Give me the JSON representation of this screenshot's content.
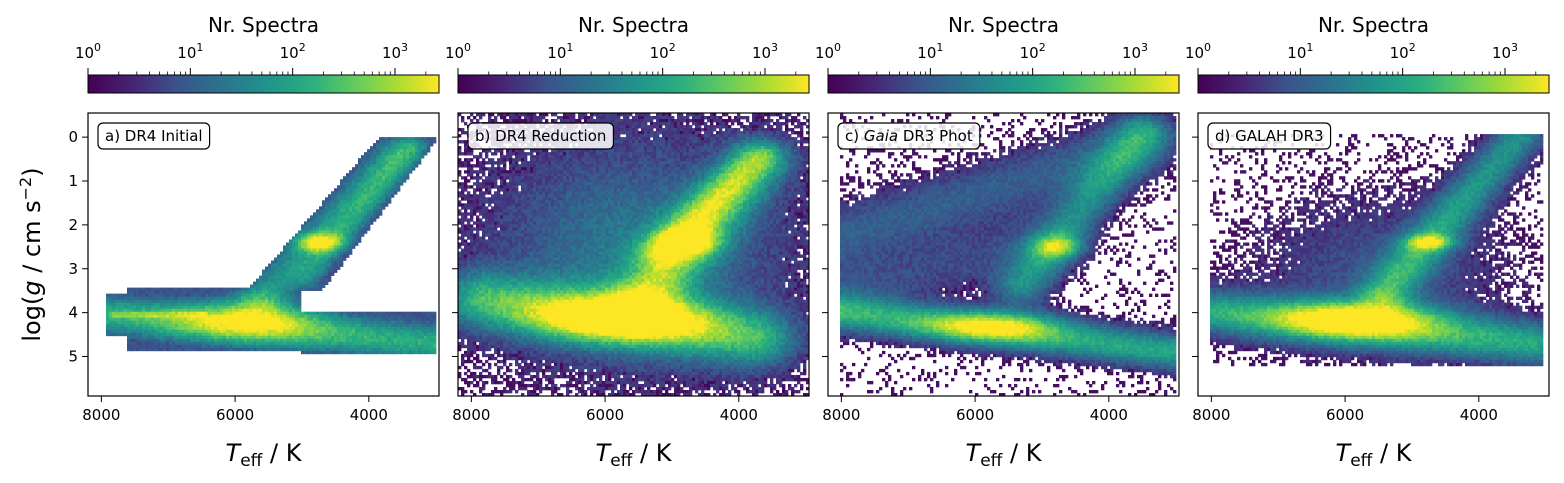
{
  "chart_data": [
    {
      "type": "heatmap",
      "panel_label": "a) DR4 Initial",
      "label_parts": [
        {
          "text": "a) DR4 Initial",
          "italic": false
        }
      ],
      "colorbar_title": "Nr. Spectra",
      "colorbar_scale": "log",
      "colorbar_ticks": [
        "10^0",
        "10^1",
        "10^2",
        "10^3"
      ],
      "colormap": "viridis",
      "xlabel": "T_eff / K",
      "ylabel": "log(g / cm s^-2)",
      "xlim": [
        8200,
        2950
      ],
      "ylim": [
        5.9,
        -0.55
      ],
      "x_ticks": [
        8000,
        6000,
        4000
      ],
      "y_ticks": [
        0,
        1,
        2,
        3,
        4,
        5
      ],
      "density_features": [
        "main sequence band at log g ~ 4.0-4.8 from 8000 K to 3000 K",
        "red giant branch from (5800 K, 3.4) to (3000 K, 0)",
        "red clump at (4700 K, 2.4)",
        "hard grid cut-offs at 7950 K and 3000 K"
      ]
    },
    {
      "type": "heatmap",
      "panel_label": "b) DR4 Reduction",
      "label_parts": [
        {
          "text": "b) DR4 Reduction",
          "italic": false
        }
      ],
      "colorbar_title": "Nr. Spectra",
      "colorbar_scale": "log",
      "colorbar_ticks": [
        "10^0",
        "10^1",
        "10^2",
        "10^3"
      ],
      "colormap": "viridis",
      "xlabel": "T_eff / K",
      "xlim": [
        8200,
        2950
      ],
      "ylim": [
        5.9,
        -0.55
      ],
      "x_ticks": [
        8000,
        6000,
        4000
      ],
      "y_ticks": [
        0,
        1,
        2,
        3,
        4,
        5
      ],
      "density_features": [
        "broad diffuse distribution",
        "main sequence peak near (5800 K, 4.2)",
        "giant branch to (3700 K, 0.5)",
        "red clump at (4700 K, 2.4)"
      ]
    },
    {
      "type": "heatmap",
      "panel_label": "c) Gaia DR3 Phot",
      "label_parts": [
        {
          "text": "c) ",
          "italic": false
        },
        {
          "text": "Gaia",
          "italic": true
        },
        {
          "text": " DR3 Phot",
          "italic": false
        }
      ],
      "colorbar_title": "Nr. Spectra",
      "colorbar_scale": "log",
      "colorbar_ticks": [
        "10^0",
        "10^1",
        "10^2",
        "10^3"
      ],
      "colormap": "viridis",
      "xlabel": "T_eff / K",
      "xlim": [
        8200,
        2950
      ],
      "ylim": [
        5.9,
        -0.55
      ],
      "x_ticks": [
        8000,
        6000,
        4000
      ],
      "y_ticks": [
        0,
        1,
        2,
        3,
        4,
        5
      ],
      "density_features": [
        "main sequence at log g ~ 4.3-4.7",
        "giant branch to (3500 K, -0.2)",
        "red clump at (4700 K, 2.5)"
      ]
    },
    {
      "type": "heatmap",
      "panel_label": "d) GALAH DR3",
      "label_parts": [
        {
          "text": "d) GALAH DR3",
          "italic": false
        }
      ],
      "colorbar_title": "Nr. Spectra",
      "colorbar_scale": "log",
      "colorbar_ticks": [
        "10^0",
        "10^1",
        "10^2",
        "10^3"
      ],
      "colormap": "viridis",
      "xlabel": "T_eff / K",
      "xlim": [
        8200,
        2950
      ],
      "ylim": [
        5.9,
        -0.55
      ],
      "x_ticks": [
        8000,
        6000,
        4000
      ],
      "y_ticks": [
        0,
        1,
        2,
        3,
        4,
        5
      ],
      "density_features": [
        "main sequence peak near (5800 K, 4.1)",
        "giant branch to (3300 K, 0)",
        "red clump at (4700 K, 2.4)"
      ]
    }
  ]
}
